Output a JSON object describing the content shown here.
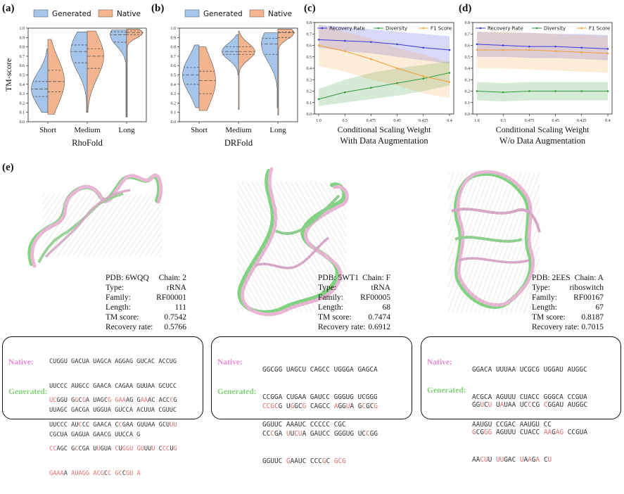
{
  "panels": {
    "a": {
      "label": "(a)",
      "method": "RhoFold"
    },
    "b": {
      "label": "(b)",
      "method": "DRFold"
    },
    "c": {
      "label": "(c)",
      "subtitle": "With Data Augmentation"
    },
    "d": {
      "label": "(d)",
      "subtitle": "W/o Data Augmentation"
    },
    "e": {
      "label": "(e)"
    }
  },
  "violin_common": {
    "ylabel": "TM-score",
    "yticks": [
      "0.0",
      "0.1",
      "0.2",
      "0.3",
      "0.4",
      "0.5",
      "0.6",
      "0.7",
      "0.8",
      "0.9",
      "1.0"
    ],
    "categories": [
      "Short",
      "Medium",
      "Long"
    ],
    "legend": [
      "Generated",
      "Native"
    ],
    "colors": {
      "generated": "#a6c5ea",
      "native": "#f4b48e"
    }
  },
  "line_common": {
    "xlabel": "Conditional Scaling Weight",
    "xticks": [
      "1.0",
      "0.5",
      "0.475",
      "0.45",
      "0.425",
      "0.4"
    ],
    "yticks": [
      "0.0",
      "0.1",
      "0.2",
      "0.3",
      "0.4",
      "0.5",
      "0.6",
      "0.7",
      "0.8"
    ],
    "legend": [
      "Recovery Rate",
      "Diversity",
      "F1 Score"
    ],
    "colors": {
      "recovery": "#3a3ae0",
      "diversity": "#2f9a3a",
      "f1": "#f0a03a"
    }
  },
  "chart_data": [
    {
      "type": "violin",
      "title": "RhoFold",
      "ylabel": "TM-score",
      "ylim": [
        0,
        1
      ],
      "categories": [
        "Short",
        "Medium",
        "Long"
      ],
      "series": [
        {
          "name": "Generated",
          "median": [
            0.35,
            0.75,
            0.93
          ],
          "q1": [
            0.27,
            0.63,
            0.85
          ],
          "q3": [
            0.43,
            0.82,
            0.96
          ],
          "range": [
            [
              0.1,
              0.78
            ],
            [
              0.1,
              0.96
            ],
            [
              0.05,
              0.98
            ]
          ]
        },
        {
          "name": "Native",
          "median": [
            0.43,
            0.7,
            0.95
          ],
          "q1": [
            0.32,
            0.57,
            0.93
          ],
          "q3": [
            0.55,
            0.78,
            0.97
          ],
          "range": [
            [
              0.08,
              0.88
            ],
            [
              0.1,
              0.97
            ],
            [
              0.05,
              0.99
            ]
          ]
        }
      ]
    },
    {
      "type": "violin",
      "title": "DRFold",
      "ylabel": "TM-score",
      "ylim": [
        0,
        1
      ],
      "categories": [
        "Short",
        "Medium",
        "Long"
      ],
      "series": [
        {
          "name": "Generated",
          "median": [
            0.5,
            0.75,
            0.83
          ],
          "q1": [
            0.4,
            0.72,
            0.72
          ],
          "q3": [
            0.58,
            0.8,
            0.89
          ],
          "range": [
            [
              0.15,
              0.82
            ],
            [
              0.5,
              0.93
            ],
            [
              0.15,
              0.95
            ]
          ]
        },
        {
          "name": "Native",
          "median": [
            0.44,
            0.75,
            0.95
          ],
          "q1": [
            0.3,
            0.72,
            0.9
          ],
          "q3": [
            0.54,
            0.8,
            0.96
          ],
          "range": [
            [
              0.12,
              0.8
            ],
            [
              0.13,
              0.97
            ],
            [
              0.07,
              0.99
            ]
          ]
        }
      ]
    },
    {
      "type": "line",
      "title": "With Data Augmentation",
      "xlabel": "Conditional Scaling Weight",
      "ylim": [
        0,
        0.8
      ],
      "x": [
        "1.0",
        "0.5",
        "0.475",
        "0.45",
        "0.425",
        "0.4"
      ],
      "series": [
        {
          "name": "Recovery Rate",
          "values": [
            0.65,
            0.64,
            0.63,
            0.61,
            0.58,
            0.56
          ],
          "band": [
            [
              0.58,
              0.78
            ],
            [
              0.55,
              0.76
            ],
            [
              0.53,
              0.74
            ],
            [
              0.5,
              0.72
            ],
            [
              0.47,
              0.7
            ],
            [
              0.44,
              0.68
            ]
          ]
        },
        {
          "name": "Diversity",
          "values": [
            0.13,
            0.19,
            0.23,
            0.27,
            0.31,
            0.36
          ],
          "band": [
            [
              0.07,
              0.22
            ],
            [
              0.1,
              0.3
            ],
            [
              0.13,
              0.36
            ],
            [
              0.16,
              0.4
            ],
            [
              0.2,
              0.43
            ],
            [
              0.25,
              0.46
            ]
          ]
        },
        {
          "name": "F1 Score",
          "values": [
            0.6,
            0.55,
            0.48,
            0.4,
            0.33,
            0.28
          ],
          "band": [
            [
              0.42,
              0.78
            ],
            [
              0.37,
              0.72
            ],
            [
              0.3,
              0.66
            ],
            [
              0.25,
              0.58
            ],
            [
              0.18,
              0.52
            ],
            [
              0.14,
              0.45
            ]
          ]
        }
      ]
    },
    {
      "type": "line",
      "title": "W/o Data Augmentation",
      "xlabel": "Conditional Scaling Weight",
      "ylim": [
        0,
        0.8
      ],
      "x": [
        "1.0",
        "0.5",
        "0.475",
        "0.45",
        "0.425",
        "0.4"
      ],
      "series": [
        {
          "name": "Recovery Rate",
          "values": [
            0.61,
            0.6,
            0.59,
            0.59,
            0.58,
            0.57
          ],
          "band": [
            [
              0.5,
              0.72
            ],
            [
              0.5,
              0.71
            ],
            [
              0.49,
              0.71
            ],
            [
              0.49,
              0.7
            ],
            [
              0.48,
              0.7
            ],
            [
              0.47,
              0.69
            ]
          ]
        },
        {
          "name": "Diversity",
          "values": [
            0.2,
            0.19,
            0.2,
            0.2,
            0.2,
            0.2
          ],
          "band": [
            [
              0.12,
              0.28
            ],
            [
              0.11,
              0.27
            ],
            [
              0.12,
              0.28
            ],
            [
              0.12,
              0.28
            ],
            [
              0.12,
              0.28
            ],
            [
              0.12,
              0.28
            ]
          ]
        },
        {
          "name": "F1 Score",
          "values": [
            0.56,
            0.56,
            0.56,
            0.55,
            0.54,
            0.53
          ],
          "band": [
            [
              0.4,
              0.72
            ],
            [
              0.4,
              0.72
            ],
            [
              0.39,
              0.71
            ],
            [
              0.38,
              0.7
            ],
            [
              0.37,
              0.69
            ],
            [
              0.36,
              0.68
            ]
          ]
        }
      ]
    }
  ],
  "structures": [
    {
      "pdb": "PDB: 6WQQ",
      "chain": "Chain: 2",
      "rows": [
        [
          "Type:",
          "rRNA"
        ],
        [
          "Family:",
          "RF00001"
        ],
        [
          "Length:",
          "111"
        ],
        [
          "TM score:",
          "0.7542"
        ],
        [
          "Recovery rate:",
          "0.5766"
        ]
      ],
      "native_label": "Native:",
      "generated_label": "Generated:",
      "native": [
        "CUGGU GACUA UAGCA AGGAG GUCAC ACCUG",
        "UUCCC AUGCC GAACA CAGAA GUUAA GCUCC",
        "UUAGC GACGA UGGUA GUCCA ACUUA CGUUC",
        "CGCUA GAGUA GAACG UUCCA G"
      ],
      "generated": [
        "UCGGU GGCGA UAGCG GAAAG GAAAC ACCCG",
        "UUCCC AUCCC GAACA CCGAA GUUAA GCUUU",
        "CCAGC GCCGA UUGUA CUGGU GUUUU CCCUG",
        "GAAAA AUAGG ACGCC GCCGU A"
      ]
    },
    {
      "pdb": "PDB: 5WT1",
      "chain": "Chain: F",
      "rows": [
        [
          "Type:",
          "tRNA"
        ],
        [
          "Family:",
          "RF00005"
        ],
        [
          "Length:",
          "68"
        ],
        [
          "TM score:",
          "0.7474"
        ],
        [
          "Recovery rate:",
          "0.6912"
        ]
      ],
      "native_label": "Native:",
      "generated_label": "Generated:",
      "native": [
        "GGCGG UAGCU CAGCC UGGGA GAGCA",
        "CCGGA CUGAA GAUCC GGGUG UCGGG",
        "GGUUC AAAUC CCCCC CGC"
      ],
      "generated": [
        "CCGCG UGGCG CAGCC AGGUA GCGCG",
        "CCCGA UUCUA GAUCC GGGUG UCCGG",
        "GGUUC GAAUC CCCGC GCG"
      ]
    },
    {
      "pdb": "PDB: 2EES",
      "chain": "Chain: A",
      "rows": [
        [
          "Type:",
          "riboswitch"
        ],
        [
          "Family:",
          "RF00167"
        ],
        [
          "Length:",
          "67"
        ],
        [
          "TM score:",
          "0.8187"
        ],
        [
          "Recovery rate:",
          "0.7015"
        ]
      ],
      "native_label": "Native:",
      "generated_label": "Generated:",
      "native": [
        "GGACA UUUAA UCGCG UGGAU AUGGC",
        "ACGCA AGUUU CUACC GGGCA CCGUA",
        "AAUGU CCGAC AAUGU CC"
      ],
      "generated": [
        "GGUCU UAUAA UCCCG CGGAU AUGGC",
        "GCGGG AGUUU CUACC AAGAG CCGUA",
        "AACUU UUGAC UAAGA CU"
      ]
    }
  ]
}
